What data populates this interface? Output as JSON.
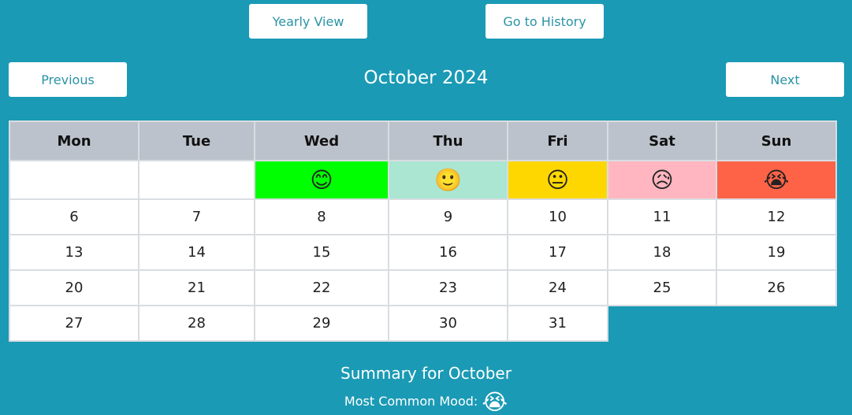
{
  "nav": {
    "yearly_label": "Yearly View",
    "history_label": "Go to History",
    "prev_label": "Previous",
    "next_label": "Next"
  },
  "calendar": {
    "title": "October 2024",
    "weekdays": [
      "Mon",
      "Tue",
      "Wed",
      "Thu",
      "Fri",
      "Sat",
      "Sun"
    ],
    "rows": [
      [
        "",
        "",
        "😊",
        "🙂",
        "😐",
        "😥",
        "😭"
      ],
      [
        "6",
        "7",
        "8",
        "9",
        "10",
        "11",
        "12"
      ],
      [
        "13",
        "14",
        "15",
        "16",
        "17",
        "18",
        "19"
      ],
      [
        "20",
        "21",
        "22",
        "23",
        "24",
        "25",
        "26"
      ],
      [
        "27",
        "28",
        "29",
        "30",
        "31",
        "",
        ""
      ]
    ],
    "mood_colors": [
      "#ffffff",
      "#ffffff",
      "#00ff00",
      "#aae6d2",
      "#ffd700",
      "#ffb6c1",
      "#ff6347"
    ]
  },
  "summary": {
    "title": "Summary for October",
    "most_common_label": "Most Common Mood:",
    "most_common_emoji": "😭"
  }
}
